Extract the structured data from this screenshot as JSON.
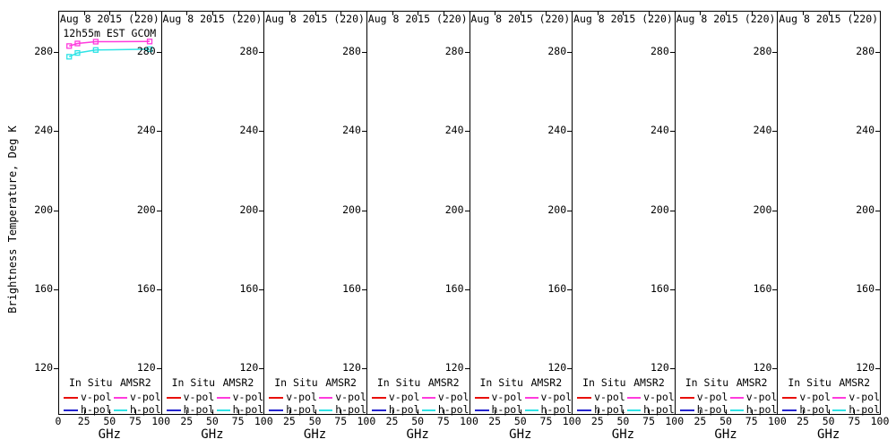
{
  "figure": {
    "background": "#ffffff",
    "y_axis": {
      "label": "Brightness Temperature, Deg K",
      "ticks": [
        "280",
        "240",
        "200",
        "160",
        "120"
      ],
      "tick_values": [
        280,
        240,
        200,
        160,
        120
      ]
    },
    "x_axis": {
      "label": "GHz",
      "ticks": [
        "25",
        "50",
        "75"
      ],
      "tick_values": [
        25,
        50,
        75
      ],
      "zero_label": "0",
      "hundred_label": "100"
    },
    "legend": {
      "col1_header": "In Situ",
      "col2_header": "AMSR2",
      "rows": [
        {
          "label": "v-pol",
          "col1_color": "#e8100c",
          "col2_color": "#ff3bdd"
        },
        {
          "label": "h-pol",
          "col1_color": "#2424cf",
          "col2_color": "#2fe3e6"
        }
      ]
    },
    "panels": [
      {
        "title": "Aug 8 2015 (220)",
        "subtitle": "12h55m EST GCOM"
      },
      {
        "title": "Aug 8 2015 (220)"
      },
      {
        "title": "Aug 8 2015 (220)"
      },
      {
        "title": "Aug 8 2015 (220)"
      },
      {
        "title": "Aug 8 2015 (220)"
      },
      {
        "title": "Aug 8 2015 (220)"
      },
      {
        "title": "Aug 8 2015 (220)"
      },
      {
        "title": "Aug 8 2015 (220)"
      }
    ]
  },
  "chart_data": {
    "type": "line",
    "title": "Aug 8 2015 (220)",
    "subtitle": "12h55m EST GCOM",
    "xlabel": "GHz",
    "ylabel": "Brightness Temperature, Deg K",
    "xlim": [
      0,
      100
    ],
    "ylim": [
      97,
      301
    ],
    "ytick_values": [
      120,
      160,
      200,
      240,
      280
    ],
    "xtick_values": [
      0,
      25,
      50,
      75,
      100
    ],
    "grid": false,
    "legend_position": "bottom-inside",
    "num_panels": 8,
    "panel_index_with_data": 0,
    "x": [
      10.65,
      18.7,
      36.5,
      89
    ],
    "series": [
      {
        "name": "AMSR2 v-pol",
        "color": "#ff3bdd",
        "marker": "open-square",
        "values": [
          283.0,
          284.3,
          285.2,
          285.3
        ]
      },
      {
        "name": "AMSR2 h-pol",
        "color": "#2fe3e6",
        "marker": "open-square",
        "values": [
          277.6,
          279.5,
          281.0,
          281.4
        ]
      }
    ],
    "empty_series_in_legend": [
      "In Situ v-pol",
      "In Situ h-pol"
    ]
  }
}
